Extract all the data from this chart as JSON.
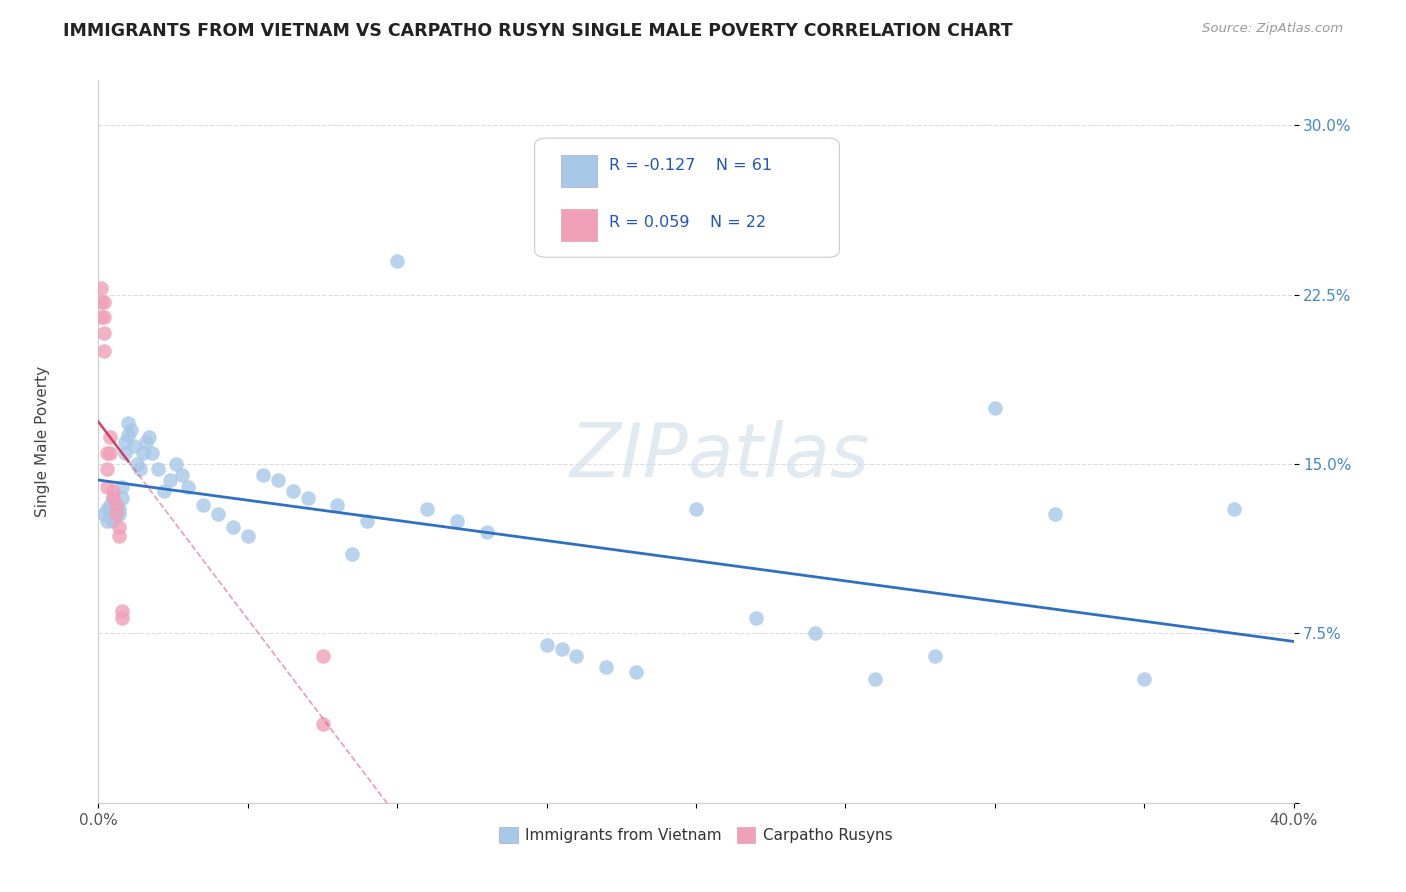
{
  "title": "IMMIGRANTS FROM VIETNAM VS CARPATHO RUSYN SINGLE MALE POVERTY CORRELATION CHART",
  "source": "Source: ZipAtlas.com",
  "ylabel": "Single Male Poverty",
  "watermark": "ZIPatlas",
  "xlim": [
    0.0,
    0.4
  ],
  "ylim": [
    0.0,
    0.32
  ],
  "xticks": [
    0.0,
    0.05,
    0.1,
    0.15,
    0.2,
    0.25,
    0.3,
    0.35,
    0.4
  ],
  "xticklabels": [
    "0.0%",
    "",
    "",
    "",
    "",
    "",
    "",
    "",
    "40.0%"
  ],
  "yticks": [
    0.0,
    0.075,
    0.15,
    0.225,
    0.3
  ],
  "yticklabels": [
    "",
    "7.5%",
    "15.0%",
    "22.5%",
    "30.0%"
  ],
  "color_vietnam": "#a8c8e8",
  "color_rusyn": "#f0a0b8",
  "line_color_vietnam": "#3070c0",
  "line_color_rusyn": "#d04060",
  "background_color": "#ffffff",
  "grid_color": "#dddddd",
  "vietnam_x": [
    0.002,
    0.003,
    0.003,
    0.004,
    0.004,
    0.005,
    0.005,
    0.005,
    0.006,
    0.006,
    0.007,
    0.007,
    0.008,
    0.008,
    0.009,
    0.009,
    0.01,
    0.01,
    0.011,
    0.012,
    0.013,
    0.014,
    0.015,
    0.016,
    0.017,
    0.018,
    0.02,
    0.022,
    0.024,
    0.026,
    0.028,
    0.03,
    0.035,
    0.04,
    0.045,
    0.05,
    0.055,
    0.06,
    0.065,
    0.07,
    0.08,
    0.085,
    0.09,
    0.1,
    0.11,
    0.12,
    0.13,
    0.15,
    0.155,
    0.16,
    0.17,
    0.18,
    0.2,
    0.22,
    0.24,
    0.26,
    0.28,
    0.3,
    0.32,
    0.35,
    0.38
  ],
  "vietnam_y": [
    0.128,
    0.13,
    0.125,
    0.132,
    0.128,
    0.135,
    0.13,
    0.125,
    0.128,
    0.132,
    0.13,
    0.128,
    0.135,
    0.14,
    0.155,
    0.16,
    0.163,
    0.168,
    0.165,
    0.158,
    0.15,
    0.148,
    0.155,
    0.16,
    0.162,
    0.155,
    0.148,
    0.138,
    0.143,
    0.15,
    0.145,
    0.14,
    0.132,
    0.128,
    0.122,
    0.118,
    0.145,
    0.143,
    0.138,
    0.135,
    0.132,
    0.11,
    0.125,
    0.24,
    0.13,
    0.125,
    0.12,
    0.07,
    0.068,
    0.065,
    0.06,
    0.058,
    0.13,
    0.082,
    0.075,
    0.055,
    0.065,
    0.175,
    0.128,
    0.055,
    0.13
  ],
  "rusyn_x": [
    0.001,
    0.001,
    0.001,
    0.002,
    0.002,
    0.002,
    0.002,
    0.003,
    0.003,
    0.003,
    0.004,
    0.004,
    0.005,
    0.005,
    0.006,
    0.006,
    0.007,
    0.007,
    0.008,
    0.008,
    0.075,
    0.075
  ],
  "rusyn_y": [
    0.215,
    0.222,
    0.228,
    0.2,
    0.208,
    0.215,
    0.222,
    0.14,
    0.148,
    0.155,
    0.155,
    0.162,
    0.135,
    0.138,
    0.128,
    0.132,
    0.122,
    0.118,
    0.085,
    0.082,
    0.035,
    0.065
  ]
}
